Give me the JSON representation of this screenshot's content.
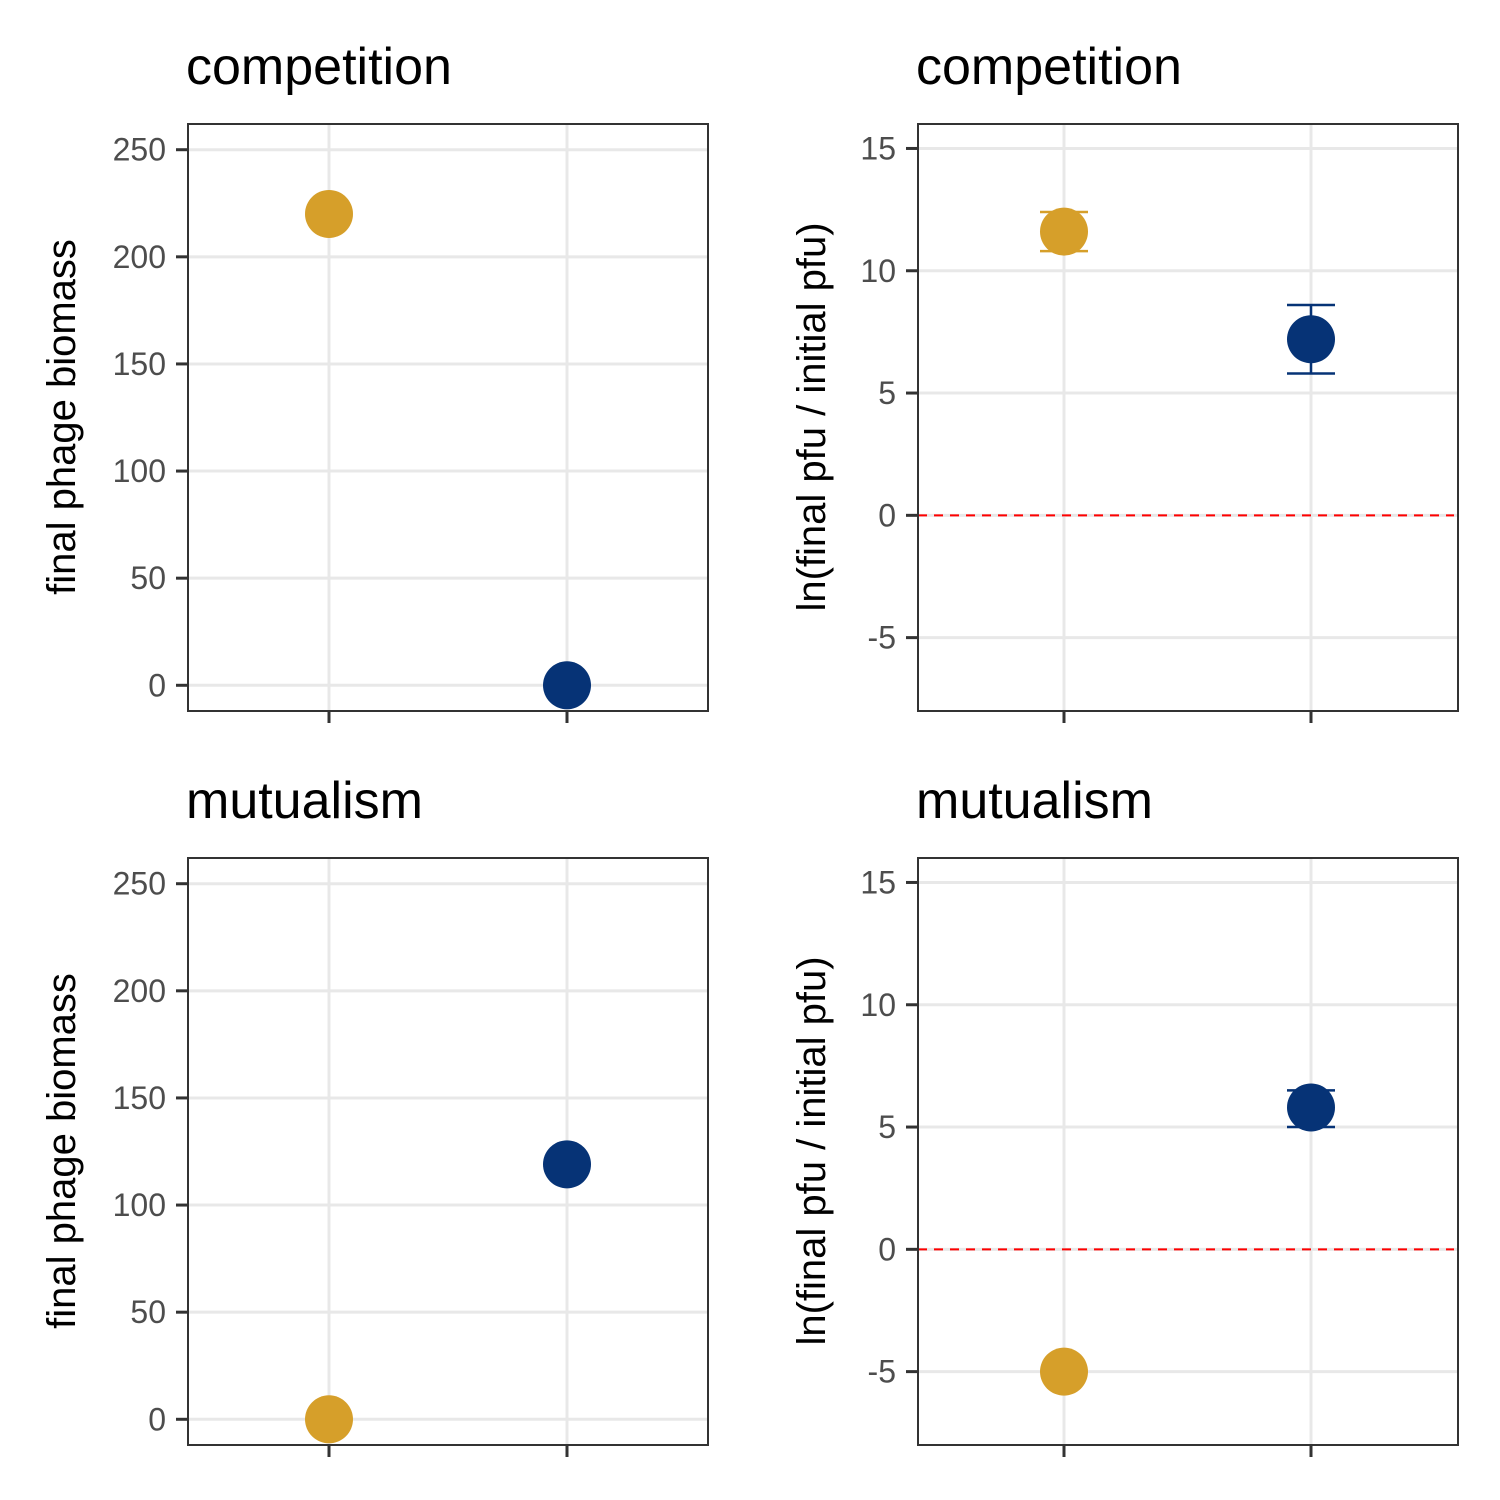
{
  "chart_data": [
    {
      "type": "scatter",
      "title": "competition",
      "ylabel": "final phage biomass",
      "ylim": [
        -12,
        262
      ],
      "yticks": [
        0,
        50,
        100,
        150,
        200,
        250
      ],
      "ytick_labels": [
        "0",
        "50",
        "100",
        "150",
        "200",
        "250"
      ],
      "x_positions": [
        1,
        2
      ],
      "grid": true,
      "points": [
        {
          "x": 1,
          "y": 220,
          "color": "#D69F2A"
        },
        {
          "x": 2,
          "y": 0,
          "color": "#063376"
        }
      ]
    },
    {
      "type": "scatter",
      "title": "competition",
      "ylabel": "ln(final pfu / initial pfu)",
      "ylim": [
        -8,
        16
      ],
      "yticks": [
        -5,
        0,
        5,
        10,
        15
      ],
      "ytick_labels": [
        "-5",
        "0",
        "5",
        "10",
        "15"
      ],
      "x_positions": [
        1,
        2
      ],
      "grid": true,
      "reference_line": {
        "y": 0,
        "color": "#FF0000",
        "style": "dashed"
      },
      "points": [
        {
          "x": 1,
          "y": 11.6,
          "err_low": 10.8,
          "err_high": 12.4,
          "color": "#D69F2A"
        },
        {
          "x": 2,
          "y": 7.2,
          "err_low": 5.8,
          "err_high": 8.6,
          "color": "#063376"
        }
      ]
    },
    {
      "type": "scatter",
      "title": "mutualism",
      "ylabel": "final phage biomass",
      "ylim": [
        -12,
        262
      ],
      "yticks": [
        0,
        50,
        100,
        150,
        200,
        250
      ],
      "ytick_labels": [
        "0",
        "50",
        "100",
        "150",
        "200",
        "250"
      ],
      "x_positions": [
        1,
        2
      ],
      "grid": true,
      "points": [
        {
          "x": 1,
          "y": 0,
          "color": "#D69F2A"
        },
        {
          "x": 2,
          "y": 119,
          "color": "#063376"
        }
      ]
    },
    {
      "type": "scatter",
      "title": "mutualism",
      "ylabel": "ln(final pfu / initial pfu)",
      "ylim": [
        -8,
        16
      ],
      "yticks": [
        -5,
        0,
        5,
        10,
        15
      ],
      "ytick_labels": [
        "-5",
        "0",
        "5",
        "10",
        "15"
      ],
      "x_positions": [
        1,
        2
      ],
      "grid": true,
      "reference_line": {
        "y": 0,
        "color": "#FF0000",
        "style": "dashed"
      },
      "points": [
        {
          "x": 1,
          "y": -5,
          "color": "#D69F2A"
        },
        {
          "x": 2,
          "y": 5.8,
          "err_low": 5.0,
          "err_high": 6.5,
          "color": "#063376"
        }
      ]
    }
  ]
}
